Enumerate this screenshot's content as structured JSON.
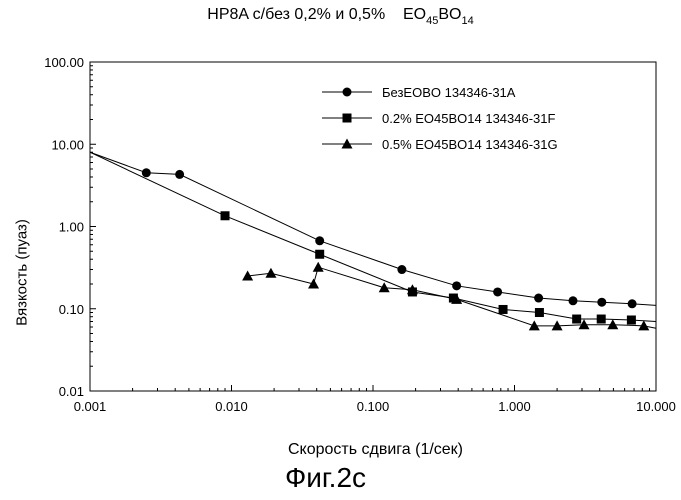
{
  "header": {
    "title_prefix": "HP8A с/без 0,2% и 0,5%",
    "title_eo": "EO",
    "title_eo_sub": "45",
    "title_bo": "BO",
    "title_bo_sub": "14"
  },
  "figure_label": "Фиг.2с",
  "chart_data": {
    "type": "line",
    "title": "HP8A с/без 0,2% и 0,5% EO45BO14",
    "xlabel": "Скорость сдвига (1/сек)",
    "ylabel": "Вязкость (пуаз)",
    "x_scale": "log",
    "y_scale": "log",
    "xlim": [
      0.001,
      10
    ],
    "ylim": [
      0.01,
      100
    ],
    "x_ticks": [
      "0.001",
      "0.010",
      "0.100",
      "1.000",
      "10.000"
    ],
    "y_ticks": [
      "100.00",
      "10.00",
      "1.00",
      "0.10",
      "0.01"
    ],
    "grid": false,
    "legend_position": "top-right",
    "series": [
      {
        "name": "БезEOBO 134346-31A",
        "marker": "circle",
        "x": [
          0.001,
          0.0025,
          0.0043,
          0.042,
          0.16,
          0.39,
          0.76,
          1.48,
          2.59,
          4.14,
          6.78,
          10
        ],
        "y": [
          8.0,
          4.5,
          4.3,
          0.67,
          0.3,
          0.19,
          0.16,
          0.135,
          0.125,
          0.12,
          0.115,
          0.11
        ]
      },
      {
        "name": "0.2% EO45BO14 134346-31F",
        "marker": "square",
        "x": [
          0.001,
          0.009,
          0.042,
          0.19,
          0.37,
          0.83,
          1.5,
          2.75,
          4.1,
          6.7,
          10
        ],
        "y": [
          8.0,
          1.35,
          0.46,
          0.16,
          0.135,
          0.098,
          0.09,
          0.075,
          0.075,
          0.073,
          0.07
        ]
      },
      {
        "name": "0.5% EO45BO14 134346-31G",
        "marker": "triangle",
        "x": [
          0.013,
          0.019,
          0.038,
          0.041,
          0.12,
          0.19,
          0.39,
          1.38,
          2.0,
          3.1,
          4.95,
          8.2,
          10
        ],
        "y": [
          0.25,
          0.27,
          0.2,
          0.32,
          0.18,
          0.17,
          0.13,
          0.062,
          0.062,
          0.064,
          0.064,
          0.062,
          0.058
        ]
      }
    ]
  }
}
